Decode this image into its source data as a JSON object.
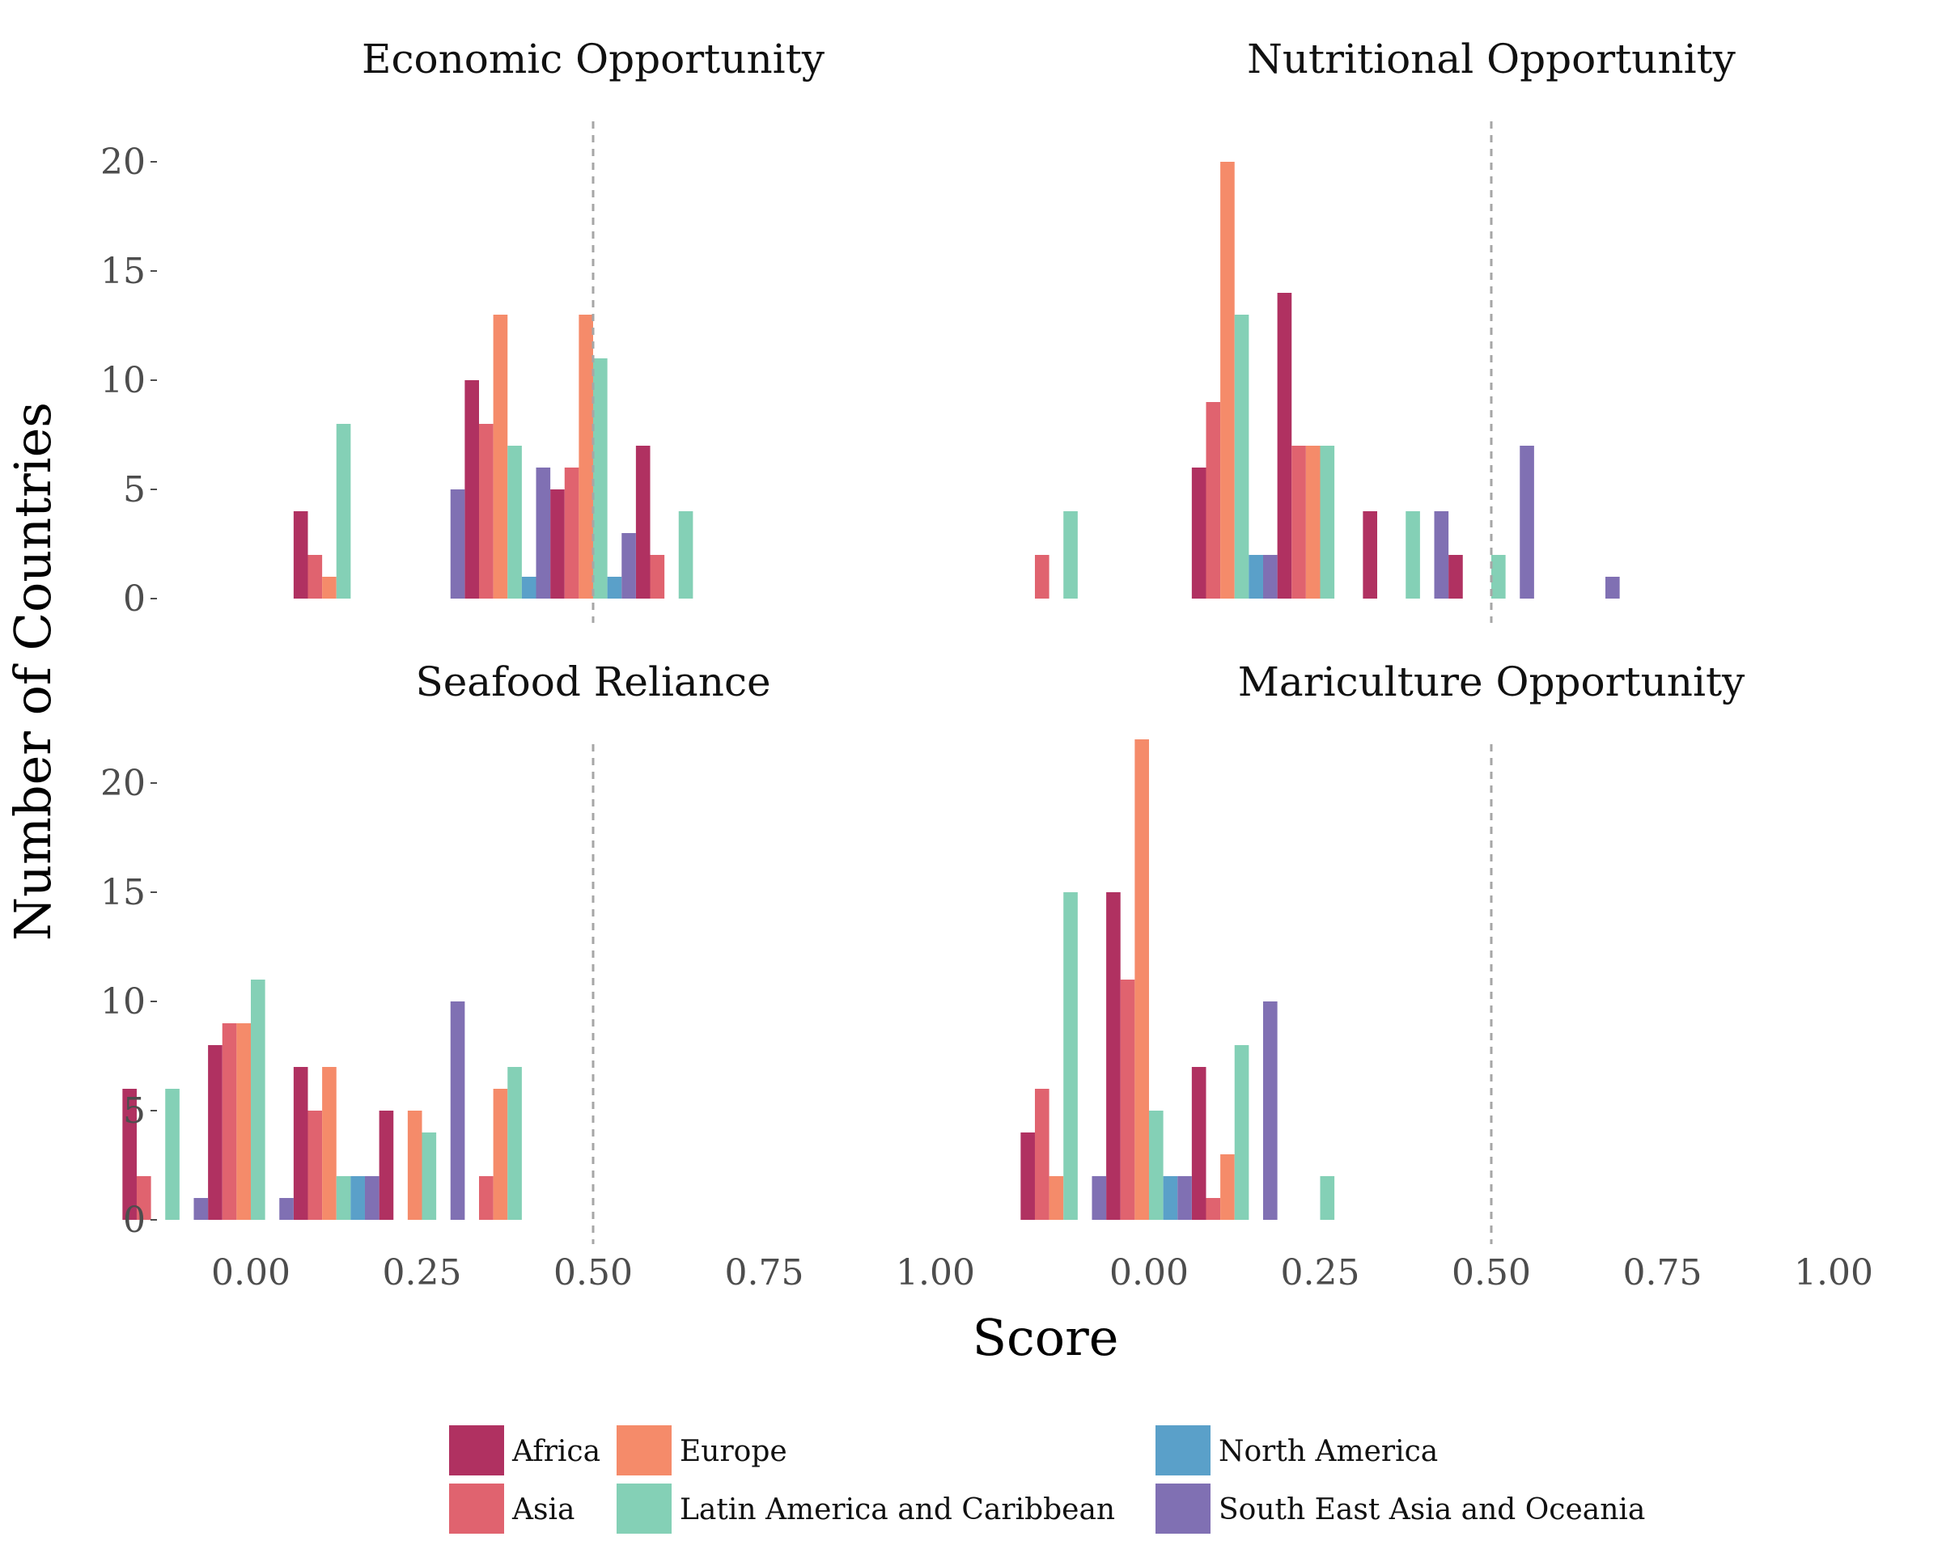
{
  "chart_data": {
    "type": "bar",
    "xlabel": "Score",
    "ylabel": "Number of Countries",
    "xlim": [
      -0.13,
      1.13
    ],
    "ylim": [
      0,
      22.5
    ],
    "x_ticks": [
      "0.00",
      "0.25",
      "0.50",
      "0.75",
      "1.00"
    ],
    "y_ticks": [
      "0",
      "5",
      "10",
      "15",
      "20"
    ],
    "reference_line_x": 0.5,
    "bin_width": 0.125,
    "bin_centers": [
      -0.125,
      0.0,
      0.125,
      0.25,
      0.375,
      0.5,
      0.625,
      0.75,
      0.875,
      1.0,
      1.125
    ],
    "regions": [
      {
        "name": "Africa",
        "color": "#b03161"
      },
      {
        "name": "Asia",
        "color": "#e0636f"
      },
      {
        "name": "Europe",
        "color": "#f58b6a"
      },
      {
        "name": "Latin America and Caribbean",
        "color": "#84d0b6"
      },
      {
        "name": "North America",
        "color": "#5aa0c9"
      },
      {
        "name": "South East Asia and Oceania",
        "color": "#8070b3"
      }
    ],
    "legend_position": "bottom",
    "panels": [
      {
        "title": "Economic Opportunity",
        "counts": [
          [
            0,
            0,
            4,
            0,
            10,
            5,
            7,
            0,
            0,
            0,
            0
          ],
          [
            0,
            0,
            2,
            0,
            8,
            6,
            2,
            0,
            0,
            0,
            0
          ],
          [
            0,
            0,
            1,
            0,
            13,
            13,
            0,
            0,
            0,
            0,
            0
          ],
          [
            0,
            0,
            8,
            0,
            7,
            11,
            4,
            0,
            0,
            0,
            0
          ],
          [
            0,
            0,
            0,
            0,
            1,
            1,
            0,
            0,
            0,
            0,
            0
          ],
          [
            0,
            0,
            0,
            5,
            6,
            3,
            0,
            0,
            0,
            0,
            0
          ]
        ]
      },
      {
        "title": "Nutritional Opportunity",
        "counts": [
          [
            0,
            0,
            6,
            14,
            4,
            2,
            0,
            0,
            0,
            0,
            0
          ],
          [
            2,
            0,
            9,
            7,
            0,
            0,
            0,
            0,
            0,
            0,
            0
          ],
          [
            0,
            0,
            20,
            7,
            0,
            0,
            0,
            0,
            0,
            0,
            0
          ],
          [
            4,
            0,
            13,
            7,
            4,
            2,
            0,
            0,
            0,
            0,
            0
          ],
          [
            0,
            0,
            2,
            0,
            0,
            0,
            0,
            0,
            0,
            0,
            0
          ],
          [
            0,
            0,
            2,
            0,
            4,
            7,
            1,
            0,
            0,
            0,
            0
          ]
        ]
      },
      {
        "title": "Seafood Reliance",
        "counts": [
          [
            6,
            8,
            7,
            5,
            0,
            0,
            0,
            0,
            0,
            0,
            0
          ],
          [
            2,
            9,
            5,
            0,
            2,
            0,
            0,
            0,
            0,
            0,
            0
          ],
          [
            0,
            9,
            7,
            5,
            6,
            0,
            0,
            0,
            0,
            0,
            0
          ],
          [
            6,
            11,
            2,
            4,
            7,
            0,
            0,
            0,
            0,
            0,
            0
          ],
          [
            0,
            0,
            2,
            0,
            0,
            0,
            0,
            0,
            0,
            0,
            0
          ],
          [
            1,
            1,
            2,
            10,
            0,
            0,
            0,
            0,
            0,
            0,
            0
          ]
        ]
      },
      {
        "title": "Mariculture Opportunity",
        "counts": [
          [
            4,
            15,
            7,
            0,
            0,
            0,
            0,
            0,
            0,
            0,
            0
          ],
          [
            6,
            11,
            1,
            0,
            0,
            0,
            0,
            0,
            0,
            0,
            0
          ],
          [
            2,
            22,
            3,
            0,
            0,
            0,
            0,
            0,
            0,
            0,
            0
          ],
          [
            15,
            5,
            8,
            2,
            0,
            0,
            0,
            0,
            0,
            0,
            0
          ],
          [
            0,
            2,
            0,
            0,
            0,
            0,
            0,
            0,
            0,
            0,
            0
          ],
          [
            2,
            2,
            10,
            0,
            0,
            0,
            0,
            0,
            0,
            0,
            0
          ]
        ]
      }
    ]
  }
}
